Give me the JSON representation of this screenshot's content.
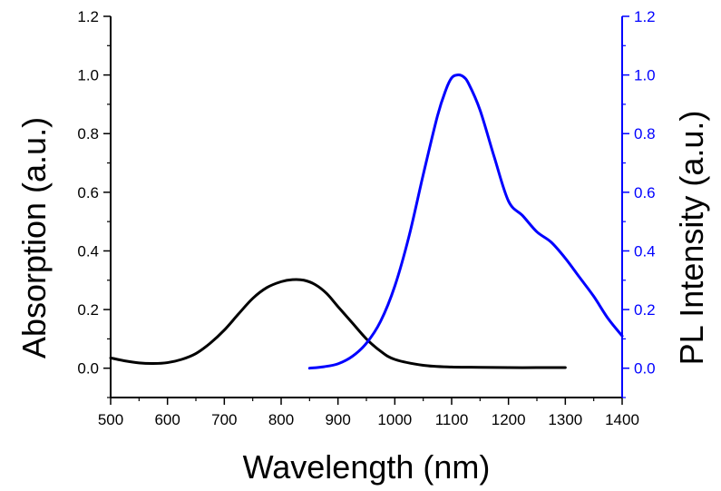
{
  "chart_data": {
    "type": "line",
    "title": "",
    "xlabel": "Wavelength (nm)",
    "ylabel_left": "Absorption (a.u.)",
    "ylabel_right": "PL Intensity (a.u.)",
    "xlim": [
      500,
      1400
    ],
    "ylim_left": [
      -0.1,
      1.2
    ],
    "ylim_right": [
      -0.1,
      1.2
    ],
    "x_ticks": [
      500,
      600,
      700,
      800,
      900,
      1000,
      1100,
      1200,
      1300,
      1400
    ],
    "x_tick_labels": [
      "500",
      "600",
      "700",
      "800",
      "900",
      "1000",
      "1100",
      "1200",
      "1300",
      "1400"
    ],
    "y_ticks": [
      0.0,
      0.2,
      0.4,
      0.6,
      0.8,
      1.0,
      1.2
    ],
    "y_tick_labels": [
      "0.0",
      "0.2",
      "0.4",
      "0.6",
      "0.8",
      "1.0",
      "1.2"
    ],
    "grid": false,
    "colors": {
      "axis_left": "#000000",
      "axis_right": "#0000ff"
    },
    "series": [
      {
        "name": "Absorption",
        "axis": "left",
        "color": "#000000",
        "x": [
          500,
          525,
          550,
          575,
          600,
          625,
          650,
          675,
          700,
          725,
          750,
          775,
          800,
          820,
          840,
          860,
          880,
          900,
          925,
          950,
          975,
          1000,
          1050,
          1100,
          1150,
          1200,
          1250,
          1300
        ],
        "y": [
          0.035,
          0.025,
          0.018,
          0.016,
          0.019,
          0.03,
          0.05,
          0.085,
          0.13,
          0.185,
          0.238,
          0.275,
          0.295,
          0.302,
          0.3,
          0.285,
          0.255,
          0.21,
          0.155,
          0.1,
          0.058,
          0.03,
          0.01,
          0.004,
          0.003,
          0.002,
          0.002,
          0.002
        ]
      },
      {
        "name": "PL Intensity",
        "axis": "right",
        "color": "#0000ff",
        "x": [
          850,
          875,
          900,
          925,
          950,
          975,
          1000,
          1025,
          1050,
          1075,
          1090,
          1100,
          1110,
          1120,
          1130,
          1150,
          1175,
          1200,
          1225,
          1250,
          1275,
          1300,
          1325,
          1350,
          1375,
          1400
        ],
        "y": [
          0.0,
          0.005,
          0.015,
          0.04,
          0.085,
          0.16,
          0.28,
          0.45,
          0.66,
          0.86,
          0.95,
          0.99,
          1.0,
          0.995,
          0.97,
          0.88,
          0.72,
          0.57,
          0.52,
          0.465,
          0.43,
          0.375,
          0.31,
          0.245,
          0.17,
          0.11
        ]
      }
    ]
  }
}
